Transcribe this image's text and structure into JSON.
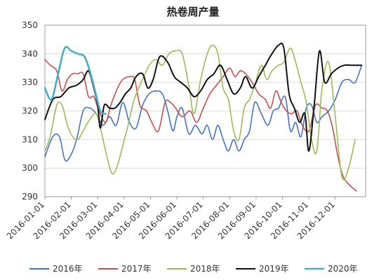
{
  "chart_data": {
    "type": "line",
    "title": "热卷周产量",
    "ylim": [
      290,
      350
    ],
    "yticks": [
      290,
      300,
      310,
      320,
      330,
      340,
      350
    ],
    "xticks": [
      "2016-01-01",
      "2016-02-01",
      "2016-03-01",
      "2016-04-01",
      "2016-05-01",
      "2016-06-01",
      "2016-07-01",
      "2016-08-01",
      "2016-09-01",
      "2016-10-01",
      "2016-11-01",
      "2016-12-01"
    ],
    "grid": true,
    "legend_position": "bottom",
    "series": [
      {
        "name": "2016年",
        "color": "#4472C4",
        "width": 1.6,
        "points": [
          [
            0,
            304
          ],
          [
            0.3,
            311
          ],
          [
            0.55,
            311
          ],
          [
            0.75,
            303
          ],
          [
            0.95,
            304
          ],
          [
            1.2,
            310
          ],
          [
            1.45,
            320
          ],
          [
            1.7,
            321
          ],
          [
            1.95,
            319
          ],
          [
            2.2,
            315
          ],
          [
            2.45,
            318
          ],
          [
            2.7,
            315
          ],
          [
            2.95,
            323
          ],
          [
            3.2,
            316
          ],
          [
            3.45,
            314
          ],
          [
            3.7,
            322
          ],
          [
            3.95,
            326
          ],
          [
            4.2,
            327
          ],
          [
            4.45,
            326
          ],
          [
            4.65,
            320
          ],
          [
            4.85,
            313
          ],
          [
            5.0,
            318
          ],
          [
            5.2,
            321
          ],
          [
            5.45,
            312
          ],
          [
            5.7,
            315
          ],
          [
            5.95,
            312
          ],
          [
            6.15,
            315
          ],
          [
            6.35,
            310
          ],
          [
            6.55,
            315
          ],
          [
            6.75,
            310
          ],
          [
            6.95,
            306
          ],
          [
            7.15,
            310
          ],
          [
            7.35,
            306
          ],
          [
            7.55,
            310
          ],
          [
            7.75,
            313
          ],
          [
            7.95,
            323
          ],
          [
            8.2,
            319
          ],
          [
            8.45,
            315
          ],
          [
            8.65,
            320
          ],
          [
            8.85,
            321
          ],
          [
            9.1,
            325
          ],
          [
            9.3,
            313
          ],
          [
            9.5,
            316
          ],
          [
            9.7,
            311
          ],
          [
            9.9,
            321
          ],
          [
            10.1,
            322
          ],
          [
            10.3,
            316
          ],
          [
            10.5,
            318
          ],
          [
            10.75,
            320
          ],
          [
            11.0,
            324
          ],
          [
            11.25,
            330
          ],
          [
            11.5,
            331
          ],
          [
            11.75,
            330
          ],
          [
            12.0,
            336
          ]
        ]
      },
      {
        "name": "2017年",
        "color": "#C0504D",
        "width": 1.6,
        "points": [
          [
            0,
            338
          ],
          [
            0.2,
            336
          ],
          [
            0.45,
            334
          ],
          [
            0.65,
            327
          ],
          [
            0.85,
            331
          ],
          [
            1.05,
            333
          ],
          [
            1.25,
            333
          ],
          [
            1.45,
            333
          ],
          [
            1.65,
            325
          ],
          [
            1.85,
            325
          ],
          [
            2.05,
            320
          ],
          [
            2.3,
            316
          ],
          [
            2.5,
            322
          ],
          [
            2.75,
            328
          ],
          [
            2.95,
            331
          ],
          [
            3.2,
            332
          ],
          [
            3.4,
            331
          ],
          [
            3.6,
            322
          ],
          [
            3.85,
            320
          ],
          [
            4.05,
            316
          ],
          [
            4.3,
            313
          ],
          [
            4.55,
            323
          ],
          [
            4.75,
            323
          ],
          [
            4.95,
            321
          ],
          [
            5.2,
            318
          ],
          [
            5.5,
            320
          ],
          [
            5.75,
            316
          ],
          [
            6.0,
            321
          ],
          [
            6.25,
            326
          ],
          [
            6.5,
            329
          ],
          [
            6.75,
            332
          ],
          [
            7.0,
            335
          ],
          [
            7.2,
            332
          ],
          [
            7.4,
            334
          ],
          [
            7.6,
            333
          ],
          [
            7.85,
            330
          ],
          [
            8.1,
            326
          ],
          [
            8.35,
            324
          ],
          [
            8.55,
            321
          ],
          [
            8.75,
            327
          ],
          [
            8.95,
            323
          ],
          [
            9.15,
            320
          ],
          [
            9.35,
            319
          ],
          [
            9.55,
            320
          ],
          [
            9.75,
            315
          ],
          [
            10.0,
            313
          ],
          [
            10.25,
            322
          ],
          [
            10.5,
            321
          ],
          [
            10.7,
            320
          ],
          [
            10.9,
            314
          ],
          [
            11.1,
            304
          ],
          [
            11.3,
            297
          ],
          [
            11.55,
            294
          ],
          [
            11.8,
            292
          ]
        ]
      },
      {
        "name": "2018年",
        "color": "#9BBB59",
        "width": 1.6,
        "points": [
          [
            0,
            306
          ],
          [
            0.2,
            311
          ],
          [
            0.45,
            322
          ],
          [
            0.65,
            322
          ],
          [
            0.85,
            315
          ],
          [
            1.05,
            311
          ],
          [
            1.25,
            310
          ],
          [
            1.45,
            313
          ],
          [
            1.7,
            317
          ],
          [
            1.95,
            319
          ],
          [
            2.15,
            312
          ],
          [
            2.35,
            304
          ],
          [
            2.55,
            298
          ],
          [
            2.75,
            301
          ],
          [
            2.95,
            308
          ],
          [
            3.15,
            315
          ],
          [
            3.35,
            323
          ],
          [
            3.55,
            328
          ],
          [
            3.75,
            332
          ],
          [
            3.95,
            336
          ],
          [
            4.2,
            338
          ],
          [
            4.45,
            336
          ],
          [
            4.7,
            340
          ],
          [
            4.95,
            341
          ],
          [
            5.2,
            340
          ],
          [
            5.45,
            329
          ],
          [
            5.65,
            319
          ],
          [
            5.9,
            331
          ],
          [
            6.15,
            340
          ],
          [
            6.35,
            343
          ],
          [
            6.55,
            340
          ],
          [
            6.75,
            328
          ],
          [
            6.95,
            324
          ],
          [
            7.15,
            313
          ],
          [
            7.35,
            310
          ],
          [
            7.55,
            321
          ],
          [
            7.75,
            324
          ],
          [
            7.95,
            329
          ],
          [
            8.2,
            336
          ],
          [
            8.4,
            331
          ],
          [
            8.6,
            334
          ],
          [
            8.85,
            336
          ],
          [
            9.05,
            337
          ],
          [
            9.3,
            342
          ],
          [
            9.5,
            337
          ],
          [
            9.7,
            330
          ],
          [
            9.9,
            323
          ],
          [
            10.1,
            310
          ],
          [
            10.3,
            306
          ],
          [
            10.5,
            328
          ],
          [
            10.75,
            337
          ],
          [
            11.0,
            318
          ],
          [
            11.25,
            297
          ],
          [
            11.5,
            300
          ],
          [
            11.75,
            310
          ]
        ]
      },
      {
        "name": "2019年",
        "color": "#111111",
        "width": 2.0,
        "points": [
          [
            0,
            317
          ],
          [
            0.3,
            324
          ],
          [
            0.6,
            325
          ],
          [
            0.9,
            328
          ],
          [
            1.2,
            329
          ],
          [
            1.45,
            331
          ],
          [
            1.65,
            334
          ],
          [
            1.85,
            328
          ],
          [
            2.0,
            322
          ],
          [
            2.1,
            314
          ],
          [
            2.25,
            322
          ],
          [
            2.45,
            321
          ],
          [
            2.65,
            321
          ],
          [
            2.85,
            323
          ],
          [
            3.05,
            326
          ],
          [
            3.25,
            328
          ],
          [
            3.45,
            332
          ],
          [
            3.7,
            333
          ],
          [
            3.9,
            328
          ],
          [
            4.1,
            331
          ],
          [
            4.35,
            339
          ],
          [
            4.65,
            337
          ],
          [
            4.9,
            332
          ],
          [
            5.15,
            330
          ],
          [
            5.4,
            328
          ],
          [
            5.65,
            325
          ],
          [
            5.9,
            327
          ],
          [
            6.15,
            331
          ],
          [
            6.4,
            333
          ],
          [
            6.65,
            336
          ],
          [
            6.9,
            331
          ],
          [
            7.15,
            326
          ],
          [
            7.4,
            328
          ],
          [
            7.6,
            332
          ],
          [
            7.85,
            328
          ],
          [
            8.1,
            332
          ],
          [
            8.35,
            336
          ],
          [
            8.6,
            340
          ],
          [
            8.85,
            343
          ],
          [
            9.05,
            342
          ],
          [
            9.25,
            326
          ],
          [
            9.45,
            321
          ],
          [
            9.65,
            316
          ],
          [
            9.85,
            319
          ],
          [
            10.0,
            306
          ],
          [
            10.2,
            322
          ],
          [
            10.4,
            341
          ],
          [
            10.6,
            330
          ],
          [
            10.85,
            333
          ],
          [
            11.1,
            335
          ],
          [
            11.35,
            336
          ],
          [
            11.6,
            336
          ],
          [
            11.85,
            336
          ],
          [
            12.0,
            336
          ]
        ]
      },
      {
        "name": "2020年",
        "color": "#4BACC6",
        "width": 2.6,
        "points": [
          [
            0,
            328
          ],
          [
            0.25,
            324
          ],
          [
            0.5,
            333
          ],
          [
            0.75,
            342
          ],
          [
            1.0,
            341
          ],
          [
            1.25,
            340
          ],
          [
            1.5,
            339
          ],
          [
            1.7,
            334
          ],
          [
            1.9,
            327
          ],
          [
            2.1,
            320
          ],
          [
            2.3,
            319
          ]
        ]
      }
    ]
  }
}
